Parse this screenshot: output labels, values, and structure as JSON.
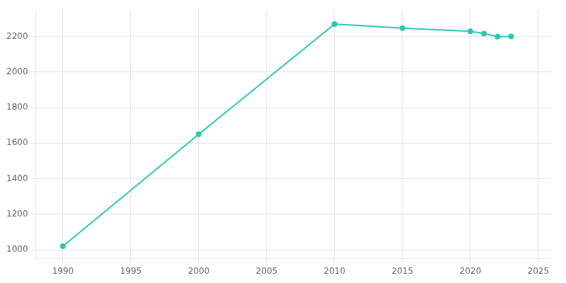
{
  "chart_data": {
    "type": "line",
    "x": [
      1990,
      2000,
      2010,
      2015,
      2020,
      2021,
      2022,
      2023
    ],
    "values": [
      1020,
      1650,
      2270,
      2247,
      2230,
      2217,
      2200,
      2201
    ],
    "color": "#2dc7b8",
    "marker": "circle",
    "xlim": [
      1988,
      2026
    ],
    "ylim": [
      950,
      2350
    ],
    "xticks": [
      1990,
      1995,
      2000,
      2005,
      2010,
      2015,
      2020,
      2025
    ],
    "yticks": [
      1000,
      1200,
      1400,
      1600,
      1800,
      2000,
      2200
    ],
    "grid": true
  }
}
